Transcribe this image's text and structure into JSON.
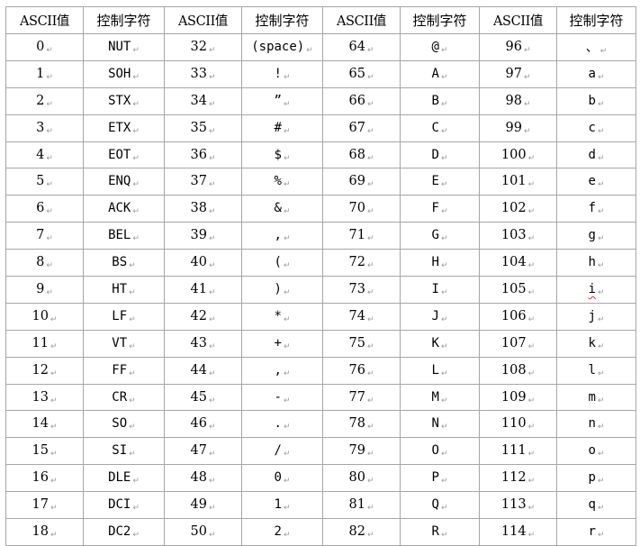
{
  "table": {
    "headers": [
      "ASCII值",
      "控制字符",
      "ASCII值",
      "控制字符",
      "ASCII值",
      "控制字符",
      "ASCII值",
      "控制字符"
    ],
    "paragraph_mark": "↵",
    "rows": [
      [
        "0",
        "NUT",
        "32",
        "(space)",
        "64",
        "@",
        "96",
        "、"
      ],
      [
        "1",
        "SOH",
        "33",
        "!",
        "65",
        "A",
        "97",
        "a"
      ],
      [
        "2",
        "STX",
        "34",
        "”",
        "66",
        "B",
        "98",
        "b"
      ],
      [
        "3",
        "ETX",
        "35",
        "#",
        "67",
        "C",
        "99",
        "c"
      ],
      [
        "4",
        "EOT",
        "36",
        "$",
        "68",
        "D",
        "100",
        "d"
      ],
      [
        "5",
        "ENQ",
        "37",
        "%",
        "69",
        "E",
        "101",
        "e"
      ],
      [
        "6",
        "ACK",
        "38",
        "&",
        "70",
        "F",
        "102",
        "f"
      ],
      [
        "7",
        "BEL",
        "39",
        ",",
        "71",
        "G",
        "103",
        "g"
      ],
      [
        "8",
        "BS",
        "40",
        "(",
        "72",
        "H",
        "104",
        "h"
      ],
      [
        "9",
        "HT",
        "41",
        ")",
        "73",
        "I",
        "105",
        "i"
      ],
      [
        "10",
        "LF",
        "42",
        "*",
        "74",
        "J",
        "106",
        "j"
      ],
      [
        "11",
        "VT",
        "43",
        "+",
        "75",
        "K",
        "107",
        "k"
      ],
      [
        "12",
        "FF",
        "44",
        ",",
        "76",
        "L",
        "108",
        "l"
      ],
      [
        "13",
        "CR",
        "45",
        "-",
        "77",
        "M",
        "109",
        "m"
      ],
      [
        "14",
        "SO",
        "46",
        ".",
        "78",
        "N",
        "110",
        "n"
      ],
      [
        "15",
        "SI",
        "47",
        "/",
        "79",
        "O",
        "111",
        "o"
      ],
      [
        "16",
        "DLE",
        "48",
        "0",
        "80",
        "P",
        "112",
        "p"
      ],
      [
        "17",
        "DCI",
        "49",
        "1",
        "81",
        "Q",
        "113",
        "q"
      ],
      [
        "18",
        "DC2",
        "50",
        "2",
        "82",
        "R",
        "114",
        "r"
      ]
    ],
    "spellcheck_underlined": [
      "i"
    ],
    "colors": {
      "grid": "#a6a6a6",
      "paragraph_mark": "#9a9a9a",
      "spellcheck": "#e03030"
    }
  }
}
